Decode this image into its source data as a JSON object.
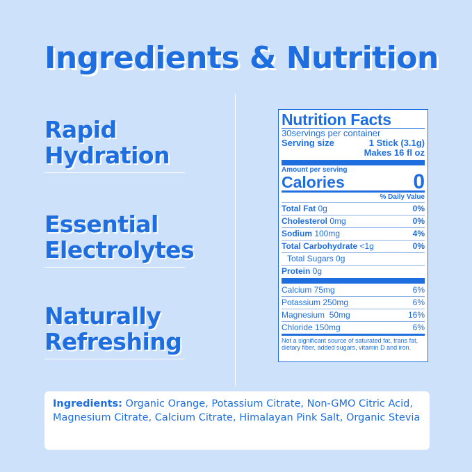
{
  "title": "Ingredients & Nutrition",
  "features": [
    "Rapid",
    "Hydration",
    "Essential",
    "Electrolytes",
    "Naturally",
    "Refreshing"
  ],
  "nutrition": {
    "heading": "Nutrition Facts",
    "servings": "30servings per container",
    "serving_size_label": "Serving size",
    "serving_size_value": "1 Stick (3.1g)",
    "makes": "Makes 16 fl oz",
    "amount_per_serving": "Amount per serving",
    "calories_label": "Calories",
    "calories_value": "0",
    "dv_header": "% Daily Value",
    "main_rows": [
      {
        "label": "Total Fat",
        "amount": " 0g",
        "dv": "0%"
      },
      {
        "label": "Cholesterol",
        "amount": " 0mg",
        "dv": "0%"
      },
      {
        "label": "Sodium",
        "amount": " 100mg",
        "dv": "4%"
      },
      {
        "label": "Total Carbohydrate",
        "amount": " <1g",
        "dv": "0%"
      }
    ],
    "sugars": "Total Sugars 0g",
    "protein_label": "Protein",
    "protein_amount": " 0g",
    "minerals": [
      {
        "label": "Calcium 75mg",
        "dv": "6%"
      },
      {
        "label": "Potassium 250mg",
        "dv": "6%"
      },
      {
        "label": "Magnesium  50mg",
        "dv": "16%"
      },
      {
        "label": "Chloride 150mg",
        "dv": "6%"
      }
    ],
    "footnote": "Not a significant source of saturated fat, trans fat, dietary fiber, added sugars, vitamin D and iron."
  },
  "ingredients": {
    "label": "Ingredients:",
    "text": " Organic Orange, Potassium Citrate, Non-GMO Citric Acid, Magnesium Citrate, Calcium Citrate, Himalayan Pink Salt, Organic Stevia"
  },
  "colors": {
    "background": "#cde2fa",
    "accent": "#1e6ee0"
  }
}
